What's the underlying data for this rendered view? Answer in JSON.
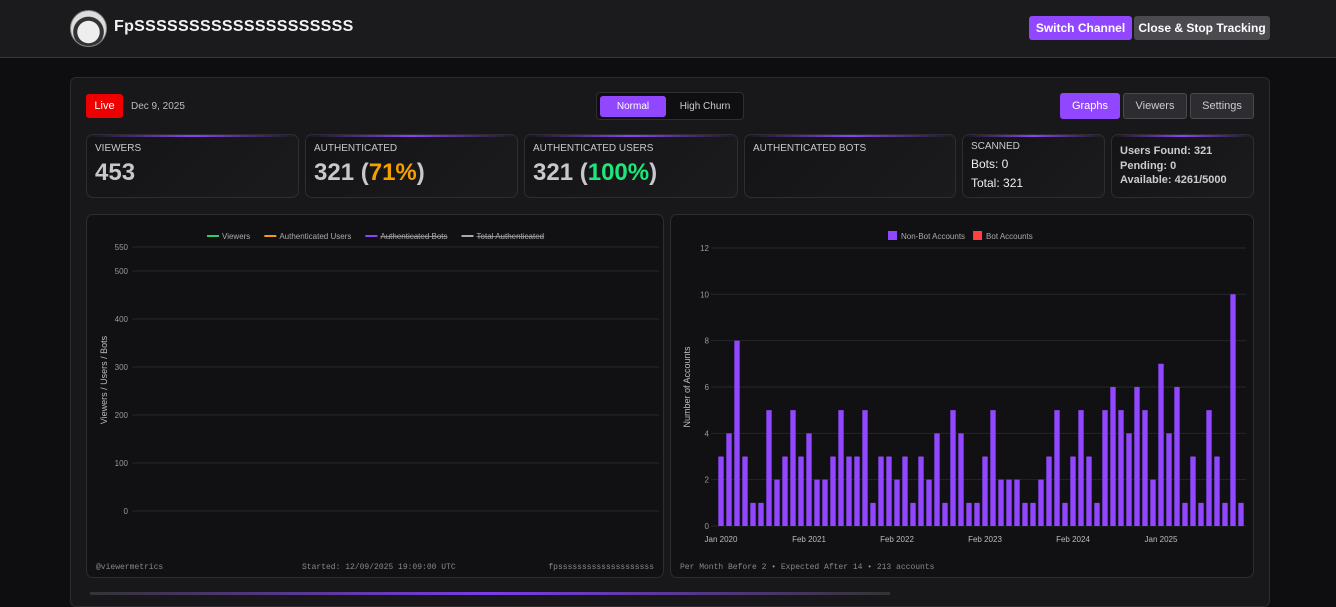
{
  "header": {
    "channel_name": "FpSSSSSSSSSSSSSSSSSSSS",
    "switch_label": "Switch Channel",
    "close_label": "Close & Stop Tracking"
  },
  "toolbar": {
    "live_label": "Live",
    "date": "Dec 9, 2025",
    "mode_options": [
      "Normal",
      "High Churn"
    ],
    "mode_selected": "Normal",
    "views": [
      "Graphs",
      "Viewers",
      "Settings"
    ],
    "view_selected": "Graphs"
  },
  "stats": {
    "viewers": {
      "label": "VIEWERS",
      "value": "453"
    },
    "authenticated": {
      "label": "AUTHENTICATED",
      "value": "321",
      "pct": "71%",
      "open": " (",
      "close": ")"
    },
    "authenticated_users": {
      "label": "AUTHENTICATED USERS",
      "value": "321",
      "pct": "100%",
      "open": " (",
      "close": ")"
    },
    "authenticated_bots": {
      "label": "AUTHENTICATED BOTS"
    },
    "scanned": {
      "label": "SCANNED",
      "bots": "Bots: 0",
      "total": "Total: 321"
    },
    "queue": {
      "users_found": "Users Found: 321",
      "pending": "Pending: 0",
      "available": "Available: 4261/5000"
    }
  },
  "colors": {
    "accent": "#9147ff",
    "live": "#e00000",
    "orange": "#f5a000",
    "green": "#1ee67a",
    "bot": "#ff4040"
  },
  "chart_data": [
    {
      "type": "line",
      "ylabel": "Viewers / Users / Bots",
      "ylim": [
        0,
        550
      ],
      "yticks": [
        0,
        100,
        200,
        300,
        400,
        500,
        550
      ],
      "legend": [
        {
          "name": "Viewers",
          "color": "#2ecc71",
          "hidden": false
        },
        {
          "name": "Authenticated Users",
          "color": "#f39c12",
          "hidden": false
        },
        {
          "name": "Authenticated Bots",
          "color": "#8e44ff",
          "hidden": true
        },
        {
          "name": "Total Authenticated",
          "color": "#aaaaaa",
          "hidden": true
        }
      ],
      "series": [],
      "footer": {
        "left": "@viewermetrics",
        "center": "Started: 12/09/2025 19:09:00 UTC",
        "right": "fpssssssssssssssssssss"
      }
    },
    {
      "type": "bar",
      "ylabel": "Number of Accounts",
      "ylim": [
        0,
        12
      ],
      "yticks": [
        0,
        2,
        4,
        6,
        8,
        10,
        12
      ],
      "legend": [
        {
          "name": "Non-Bot Accounts",
          "color": "#9147ff"
        },
        {
          "name": "Bot Accounts",
          "color": "#ff4040"
        }
      ],
      "xticks": [
        {
          "index": 0,
          "label": "Jan 2020"
        },
        {
          "index": 11,
          "label": "Feb 2021"
        },
        {
          "index": 22,
          "label": "Feb 2022"
        },
        {
          "index": 33,
          "label": "Feb 2023"
        },
        {
          "index": 44,
          "label": "Feb 2024"
        },
        {
          "index": 55,
          "label": "Jan 2025"
        }
      ],
      "series": [
        {
          "name": "Non-Bot Accounts",
          "values": [
            3,
            4,
            8,
            3,
            1,
            1,
            5,
            2,
            3,
            5,
            3,
            4,
            2,
            2,
            3,
            5,
            3,
            3,
            5,
            1,
            3,
            3,
            2,
            3,
            1,
            3,
            2,
            4,
            1,
            5,
            4,
            1,
            1,
            3,
            5,
            2,
            2,
            2,
            1,
            1,
            2,
            3,
            5,
            1,
            3,
            5,
            3,
            1,
            5,
            6,
            5,
            4,
            6,
            5,
            2,
            7,
            4,
            6,
            1,
            3,
            1,
            5,
            3,
            1,
            10,
            1
          ]
        },
        {
          "name": "Bot Accounts",
          "values": []
        }
      ],
      "footer": "Per Month Before 2 • Expected After 14 • 213 accounts"
    }
  ]
}
